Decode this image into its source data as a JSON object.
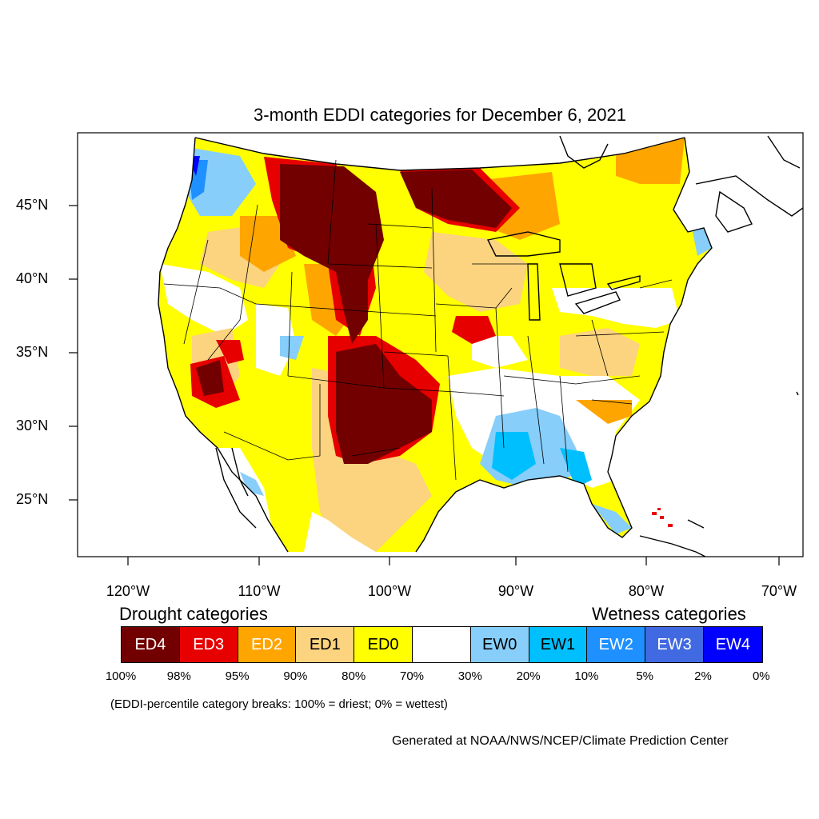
{
  "title": "3-month EDDI categories for December 6, 2021",
  "lat_labels": [
    "45°N",
    "40°N",
    "35°N",
    "30°N",
    "25°N"
  ],
  "lon_labels": [
    "120°W",
    "110°W",
    "100°W",
    "90°W",
    "80°W",
    "70°W"
  ],
  "legend": {
    "drought_heading": "Drought categories",
    "wetness_heading": "Wetness categories",
    "categories": [
      {
        "label": "ED4",
        "color": "#730000",
        "text_color": "#ffffff"
      },
      {
        "label": "ED3",
        "color": "#e60000",
        "text_color": "#ffffff"
      },
      {
        "label": "ED2",
        "color": "#ffa500",
        "text_color": "#ffffff"
      },
      {
        "label": "ED1",
        "color": "#fcd37f",
        "text_color": "#000000"
      },
      {
        "label": "ED0",
        "color": "#ffff00",
        "text_color": "#000000"
      },
      {
        "label": "",
        "color": "#ffffff",
        "text_color": "#000000"
      },
      {
        "label": "EW0",
        "color": "#87cefa",
        "text_color": "#000000"
      },
      {
        "label": "EW1",
        "color": "#00bfff",
        "text_color": "#000000"
      },
      {
        "label": "EW2",
        "color": "#1e90ff",
        "text_color": "#ffffff"
      },
      {
        "label": "EW3",
        "color": "#4169e1",
        "text_color": "#ffffff"
      },
      {
        "label": "EW4",
        "color": "#0000ff",
        "text_color": "#ffffff"
      }
    ],
    "percent_breaks": [
      "100%",
      "98%",
      "95%",
      "90%",
      "80%",
      "70%",
      "30%",
      "20%",
      "10%",
      "5%",
      "2%",
      "0%"
    ]
  },
  "note": "(EDDI-percentile category breaks: 100% = driest; 0% = wettest)",
  "credit": "Generated at NOAA/NWS/NCEP/Climate Prediction Center"
}
